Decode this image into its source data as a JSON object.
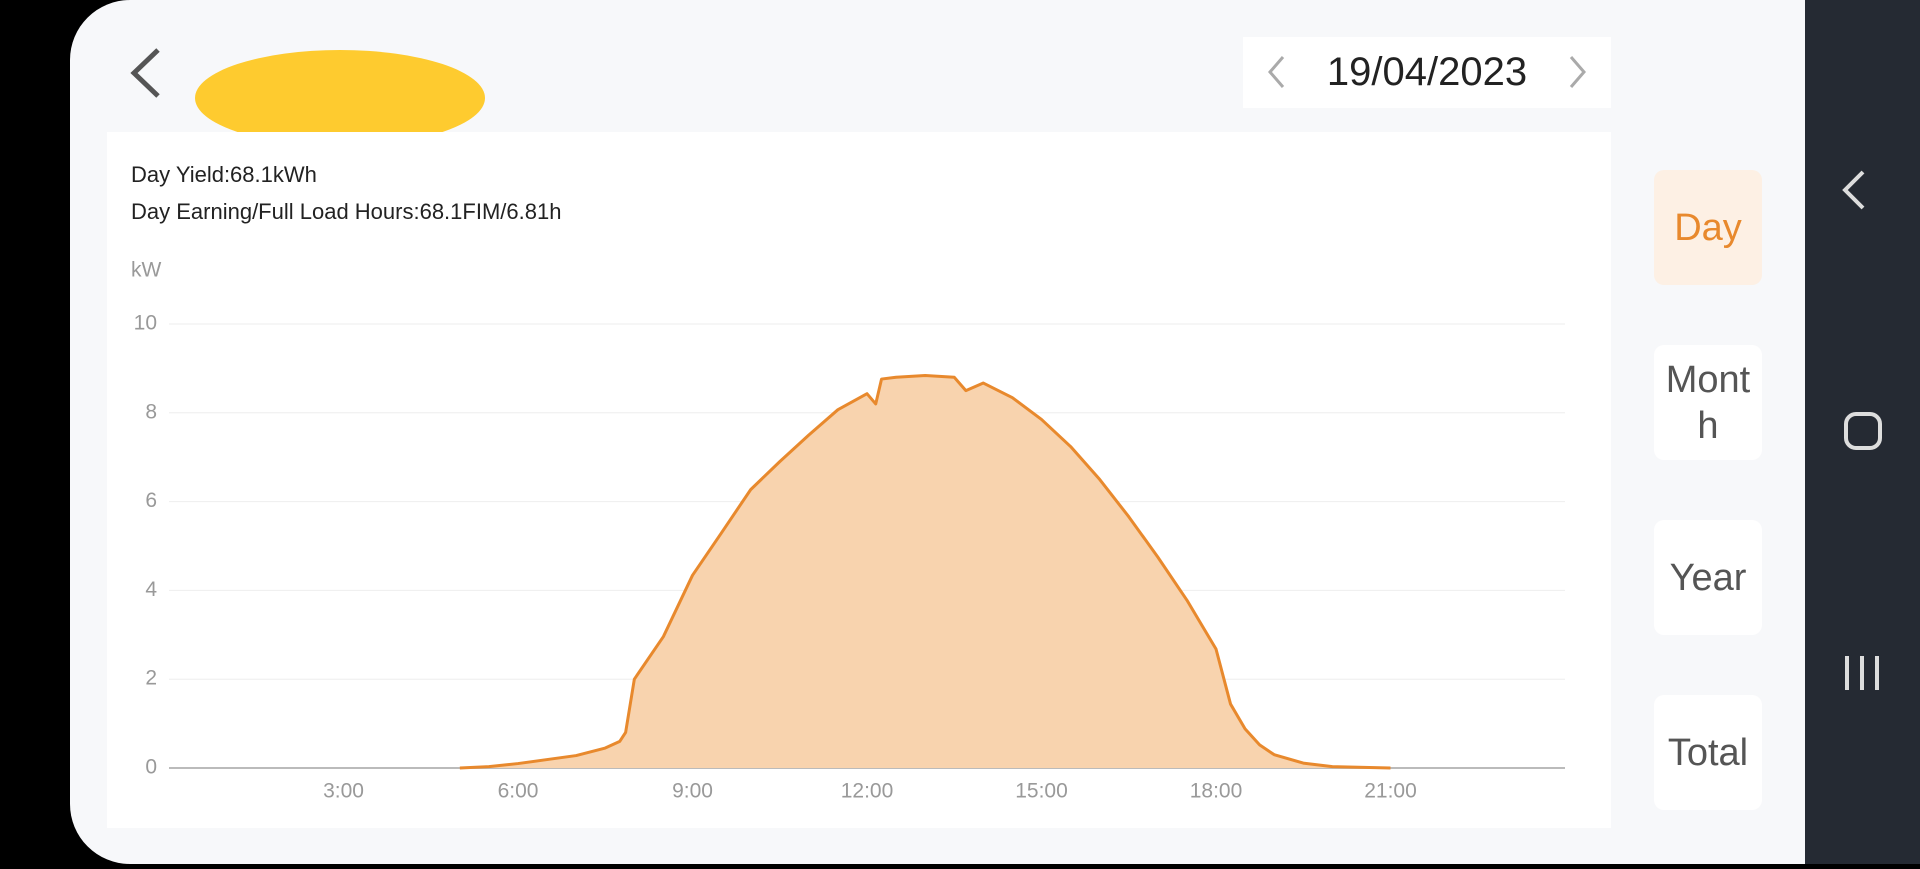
{
  "header": {
    "date": "19/04/2023"
  },
  "summary": [
    "Day Yield:68.1kWh",
    "Day Earning/Full Load Hours:68.1FIM/6.81h"
  ],
  "chart_data": {
    "type": "area",
    "y_label": "kW",
    "color": "#e8892d",
    "fill": "#f8d3ae",
    "x": [
      5,
      5.5,
      6,
      6.5,
      7,
      7.5,
      7.75,
      7.85,
      8,
      8.5,
      9,
      9.5,
      10,
      10.5,
      11,
      11.5,
      12,
      12.15,
      12.25,
      12.5,
      13,
      13.5,
      13.7,
      14,
      14.5,
      15,
      15.5,
      16,
      16.5,
      17,
      17.5,
      18,
      18.25,
      18.5,
      18.75,
      19,
      19.5,
      20,
      21
    ],
    "values": [
      0,
      0.03,
      0.1,
      0.19,
      0.28,
      0.45,
      0.6,
      0.8,
      2.0,
      2.96,
      4.34,
      5.3,
      6.27,
      6.9,
      7.5,
      8.07,
      8.43,
      8.2,
      8.76,
      8.8,
      8.84,
      8.8,
      8.5,
      8.67,
      8.34,
      7.85,
      7.24,
      6.5,
      5.66,
      4.75,
      3.78,
      2.68,
      1.44,
      0.88,
      0.52,
      0.3,
      0.11,
      0.03,
      0
    ],
    "xlim": [
      0,
      24
    ],
    "xticks": [
      {
        "value": 3,
        "label": "3:00"
      },
      {
        "value": 6,
        "label": "6:00"
      },
      {
        "value": 9,
        "label": "9:00"
      },
      {
        "value": 12,
        "label": "12:00"
      },
      {
        "value": 15,
        "label": "15:00"
      },
      {
        "value": 18,
        "label": "18:00"
      },
      {
        "value": 21,
        "label": "21:00"
      }
    ],
    "ylim": [
      0,
      10
    ],
    "yticks": [
      0,
      2,
      4,
      6,
      8,
      10
    ],
    "grid": true
  },
  "tabs": [
    "Day",
    "Month",
    "Year",
    "Total"
  ]
}
